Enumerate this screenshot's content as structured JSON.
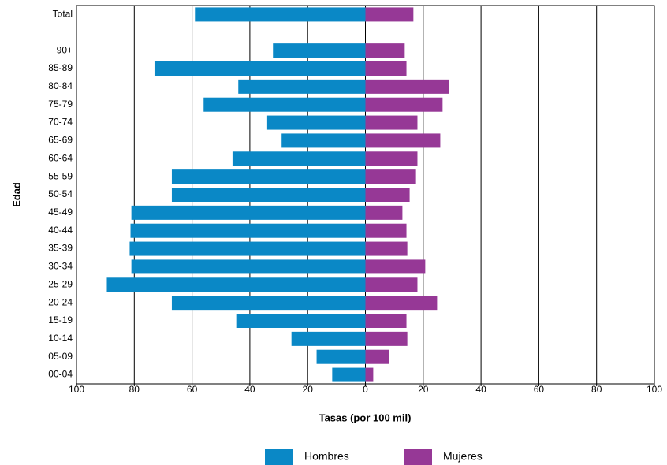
{
  "chart_data": {
    "type": "bar",
    "orientation": "horizontal",
    "stacked": "diverging",
    "xlabel": "Tasas (por 100 mil)",
    "ylabel": "Edad",
    "categories": [
      "Total",
      null,
      "90+",
      "85-89",
      "80-84",
      "75-79",
      "70-74",
      "65-69",
      "60-64",
      "55-59",
      "50-54",
      "45-49",
      "40-44",
      "35-39",
      "30-34",
      "25-29",
      "20-24",
      "15-19",
      "10-14",
      "05-09",
      "00-04"
    ],
    "series": [
      {
        "name": "Hombres",
        "color": "#0a88c6",
        "values": [
          -59,
          null,
          -32,
          -73,
          -44,
          -56,
          -34,
          -29,
          -46,
          -67,
          -67,
          -81,
          -81.3,
          -81.6,
          -81,
          -89.5,
          -67,
          -44.7,
          -25.6,
          -16.9,
          -11.5
        ]
      },
      {
        "name": "Mujeres",
        "color": "#963896",
        "values": [
          16.6,
          null,
          13.6,
          14.2,
          28.9,
          26.7,
          18,
          25.9,
          18,
          17.5,
          15.3,
          12.8,
          14.2,
          14.5,
          20.7,
          18,
          24.8,
          14.2,
          14.5,
          8.2,
          2.7
        ]
      }
    ],
    "xlim": [
      -100,
      100
    ],
    "xticks": [
      {
        "value": -100,
        "label": "100"
      },
      {
        "value": -80,
        "label": "80"
      },
      {
        "value": -60,
        "label": "60"
      },
      {
        "value": -40,
        "label": "40"
      },
      {
        "value": -20,
        "label": "20"
      },
      0,
      20,
      40,
      60,
      80,
      100
    ],
    "grid": true,
    "legend": "bottom"
  }
}
